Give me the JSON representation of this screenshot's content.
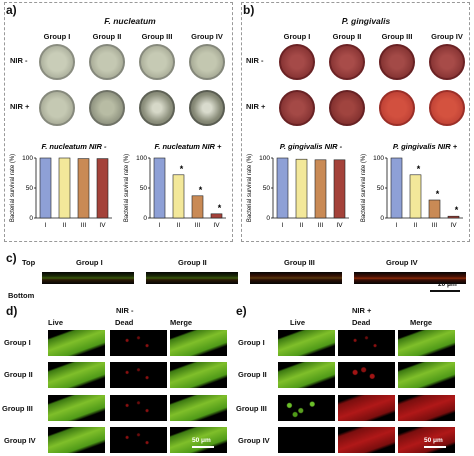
{
  "panels": {
    "a": {
      "label": "a)",
      "title": "F. nucleatum",
      "groups": [
        "Group I",
        "Group II",
        "Group III",
        "Group IV"
      ],
      "rows": [
        "NIR -",
        "NIR +"
      ]
    },
    "b": {
      "label": "b)",
      "title": "P. gingivalis",
      "groups": [
        "Group I",
        "Group II",
        "Group III",
        "Group IV"
      ],
      "rows": [
        "NIR -",
        "NIR +"
      ]
    },
    "c": {
      "label": "c)",
      "top": "Top",
      "bottom": "Bottom",
      "groups": [
        "Group I",
        "Group II",
        "Group III",
        "Group IV"
      ],
      "scale": "20 μm"
    },
    "d": {
      "label": "d)",
      "header": "NIR -",
      "cols": [
        "Live",
        "Dead",
        "Merge"
      ],
      "rows": [
        "Group I",
        "Group II",
        "Group III",
        "Group IV"
      ],
      "scale": "50 μm"
    },
    "e": {
      "label": "e)",
      "header": "NIR +",
      "cols": [
        "Live",
        "Dead",
        "Merge"
      ],
      "rows": [
        "Group I",
        "Group II",
        "Group III",
        "Group IV"
      ],
      "scale": "50 μm"
    }
  },
  "colors": {
    "groupI": "#8ea0d6",
    "groupII": "#f3e89a",
    "groupIII": "#c98a55",
    "groupIV": "#a4423a"
  },
  "chart_data": [
    {
      "type": "bar",
      "title": "F. nucleatum NIR -",
      "ylabel": "Bacterial survival rate (%)",
      "categories": [
        "I",
        "II",
        "III",
        "IV"
      ],
      "values": [
        100,
        100,
        99,
        99
      ],
      "ylim": [
        0,
        100
      ],
      "ticks": [
        0,
        50,
        100
      ],
      "sig": [
        false,
        false,
        false,
        false
      ]
    },
    {
      "type": "bar",
      "title": "F. nucleatum NIR +",
      "ylabel": "Bacterial survival rate (%)",
      "categories": [
        "I",
        "II",
        "III",
        "IV"
      ],
      "values": [
        100,
        72,
        37,
        7
      ],
      "ylim": [
        0,
        100
      ],
      "ticks": [
        0,
        50,
        100
      ],
      "sig": [
        false,
        true,
        true,
        true
      ]
    },
    {
      "type": "bar",
      "title": "P. gingivalis NIR -",
      "ylabel": "Bacterial survival rate (%)",
      "categories": [
        "I",
        "II",
        "III",
        "IV"
      ],
      "values": [
        100,
        98,
        97,
        97
      ],
      "ylim": [
        0,
        100
      ],
      "ticks": [
        0,
        50,
        100
      ],
      "sig": [
        false,
        false,
        false,
        false
      ]
    },
    {
      "type": "bar",
      "title": "P. gingivalis NIR +",
      "ylabel": "Bacterial survival rate (%)",
      "categories": [
        "I",
        "II",
        "III",
        "IV"
      ],
      "values": [
        100,
        72,
        30,
        3
      ],
      "ylim": [
        0,
        100
      ],
      "ticks": [
        0,
        50,
        100
      ],
      "sig": [
        false,
        true,
        true,
        true
      ]
    }
  ]
}
